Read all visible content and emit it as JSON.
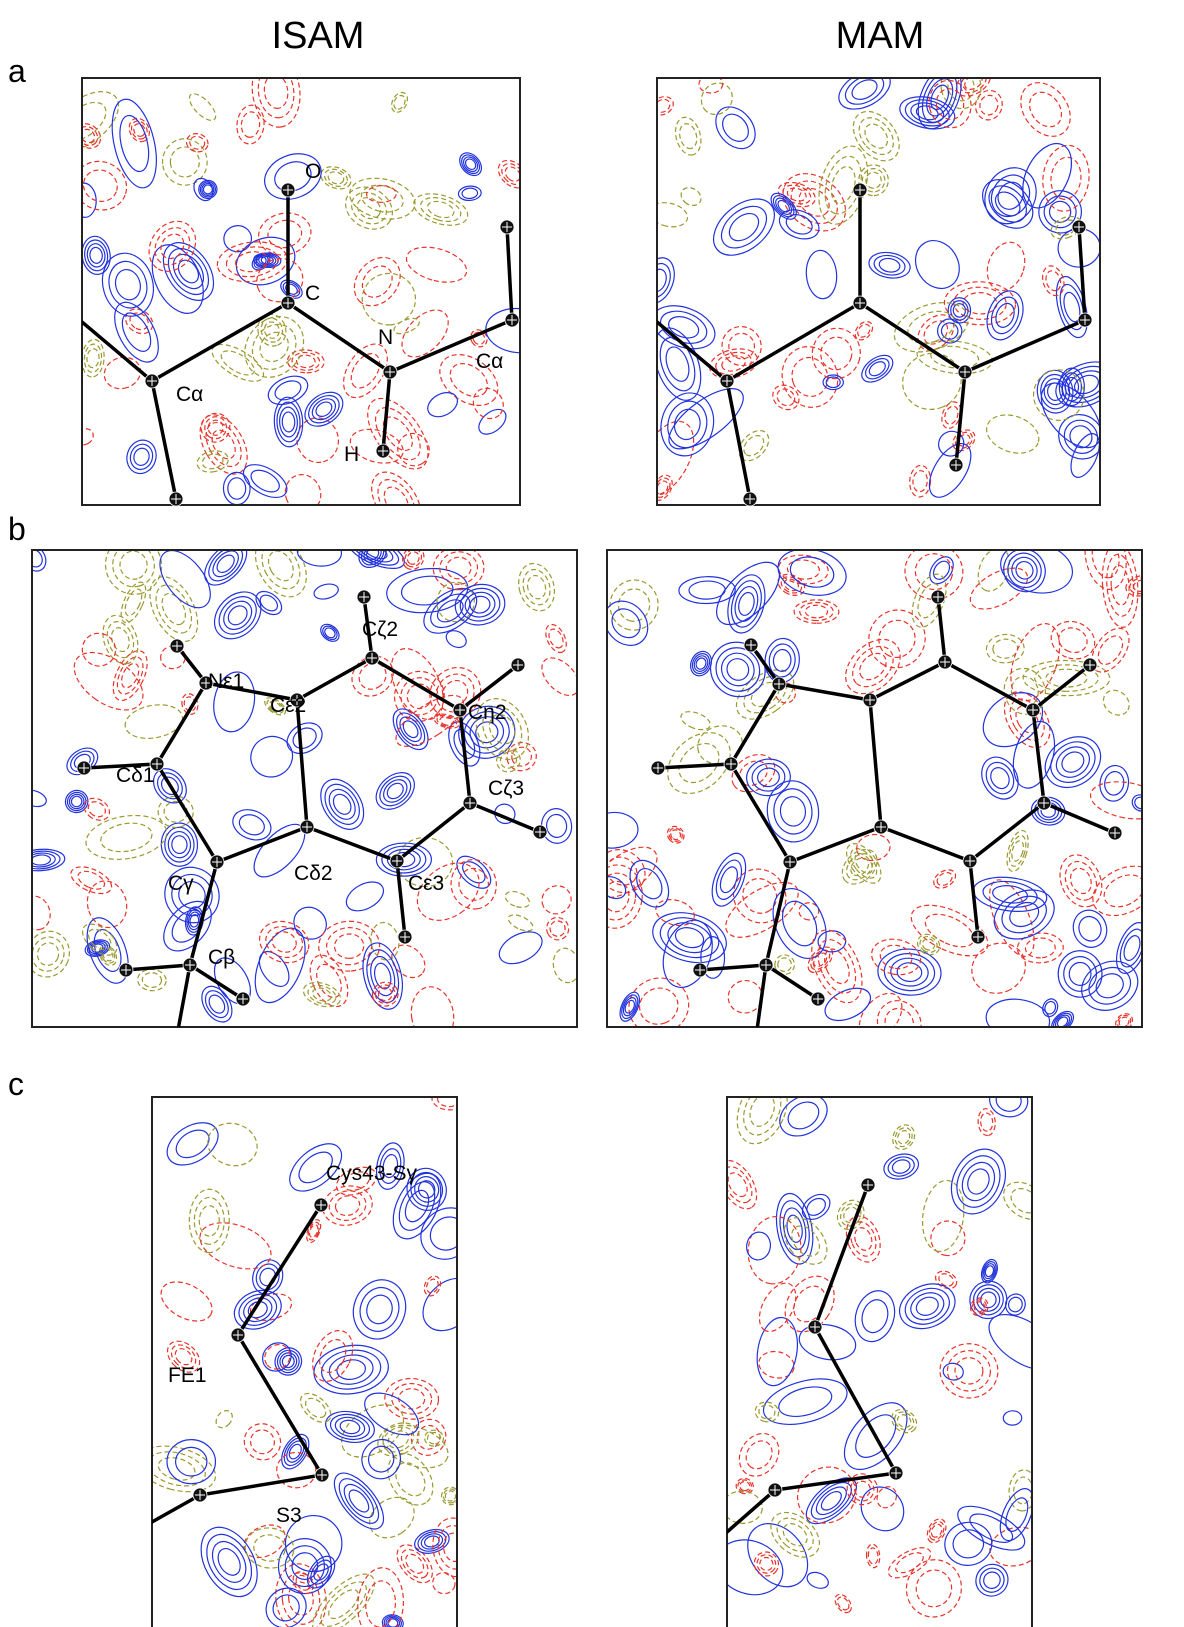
{
  "headers": {
    "left": "ISAM",
    "right": "MAM"
  },
  "panels": [
    {
      "label": "a",
      "atom_labels": [
        "O",
        "C",
        "N",
        "Cα",
        "Cα",
        "H"
      ]
    },
    {
      "label": "b",
      "atom_labels": [
        "Nε1",
        "Cε2",
        "Cζ2",
        "Cη2",
        "Cζ3",
        "Cδ1",
        "Cγ",
        "Cδ2",
        "Cε3",
        "Cβ"
      ]
    },
    {
      "label": "c",
      "atom_labels": [
        "Cys43-Sγ",
        "FE1",
        "S3"
      ]
    }
  ]
}
